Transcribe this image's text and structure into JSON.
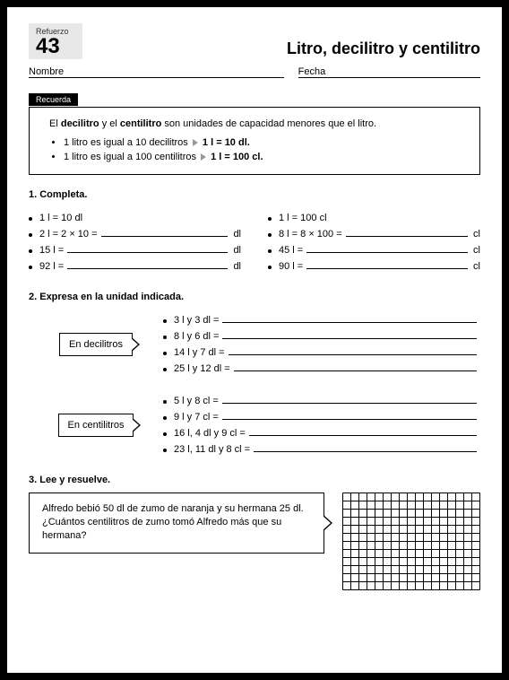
{
  "badge": {
    "label": "Refuerzo",
    "number": "43"
  },
  "title": "Litro, decilitro y centilitro",
  "fields": {
    "name_label": "Nombre",
    "date_label": "Fecha"
  },
  "recuerda": {
    "tab": "Recuerda",
    "intro_1": "El ",
    "intro_b1": "decilitro",
    "intro_2": " y el ",
    "intro_b2": "centilitro",
    "intro_3": " son unidades de capacidad menores que el litro.",
    "b1_text": "1 litro es igual a 10 decilitros ",
    "b1_bold": "1 l = 10 dl.",
    "b2_text": "1 litro es igual a 100 centilitros ",
    "b2_bold": "1 l = 100 cl."
  },
  "s1": {
    "title": "1.  Completa.",
    "left": [
      {
        "text": "1 l = 10 dl",
        "blank": false
      },
      {
        "text": "2 l = 2 × 10 =",
        "blank": true,
        "unit": "dl"
      },
      {
        "text": "15 l =",
        "blank": true,
        "unit": "dl"
      },
      {
        "text": "92 l =",
        "blank": true,
        "unit": "dl"
      }
    ],
    "right": [
      {
        "text": "1 l = 100 cl",
        "blank": false
      },
      {
        "text": "8 l = 8 × 100 =",
        "blank": true,
        "unit": "cl"
      },
      {
        "text": "45 l =",
        "blank": true,
        "unit": "cl"
      },
      {
        "text": "90 l =",
        "blank": true,
        "unit": "cl"
      }
    ]
  },
  "s2": {
    "title": "2.  Expresa en la unidad indicada.",
    "group1": {
      "label": "En decilitros",
      "items": [
        "3 l y 3 dl =",
        "8 l y 6 dl =",
        "14 l y 7 dl =",
        "25 l y 12 dl ="
      ]
    },
    "group2": {
      "label": "En centilitros",
      "items": [
        "5 l y 8 cl =",
        "9 l y 7 cl =",
        "16 l, 4 dl y 9 cl =",
        "23 l, 11 dl y 8 cl ="
      ]
    }
  },
  "s3": {
    "title": "3.  Lee y resuelve.",
    "problem": "Alfredo bebió 50 dl de zumo de naranja y su hermana 25 dl. ¿Cuántos centilitros de zumo tomó Alfredo más que su hermana?"
  },
  "grid": {
    "cols": 17,
    "rows": 12,
    "cell": 9,
    "stroke": "#000"
  }
}
